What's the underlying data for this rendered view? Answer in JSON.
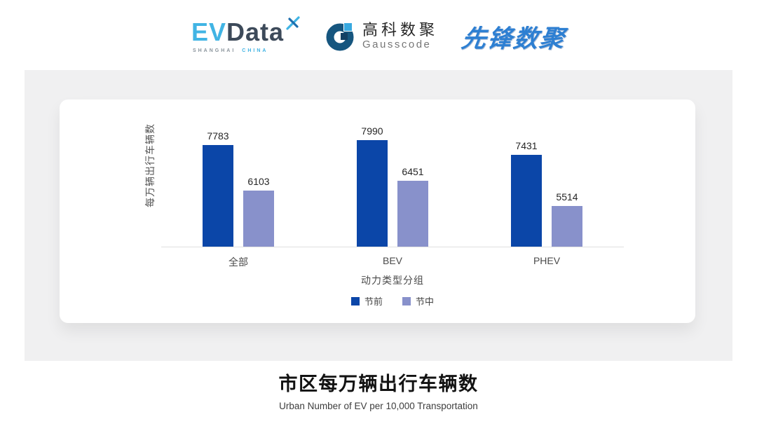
{
  "header": {
    "evdata": {
      "ev": "EV",
      "data": "Data",
      "sub_left": "SHANGHAI",
      "sub_right": "CHINA"
    },
    "gausscode": {
      "cn": "高科数聚",
      "en": "Gausscode"
    },
    "pioneer": {
      "text": "先锋数聚"
    }
  },
  "icons": {
    "evdata_mark": "sparkle-x-icon",
    "gausscode_mark": "g-ring-icon"
  },
  "colors": {
    "series_pre_festival": "#0B46A8",
    "series_mid_festival": "#8891CB",
    "panel_bg": "#F0F0F1",
    "axis_line": "#E0E0E0",
    "evdata_blue": "#41B4E4",
    "evdata_dark": "#3D4A5A",
    "gauss_ring": "#16567F",
    "gauss_light_square": "#38A9E0",
    "gauss_dark_square": "#123F63",
    "pioneer_blue": "#2D7FD2"
  },
  "chart_data": {
    "type": "bar",
    "categories": [
      "全部",
      "BEV",
      "PHEV"
    ],
    "series": [
      {
        "name": "节前",
        "color": "#0B46A8",
        "values": [
          7783,
          7990,
          7431
        ]
      },
      {
        "name": "节中",
        "color": "#8891CB",
        "values": [
          6103,
          6451,
          5514
        ]
      }
    ],
    "ylabel": "每万辆出行车辆数",
    "xlabel": "动力类型分组",
    "ylim": [
      4000,
      8500
    ],
    "grid": false,
    "legend_position": "bottom",
    "bar_labels": true
  },
  "footer": {
    "title": "市区每万辆出行车辆数",
    "subtitle": "Urban Number of EV per 10,000 Transportation"
  }
}
